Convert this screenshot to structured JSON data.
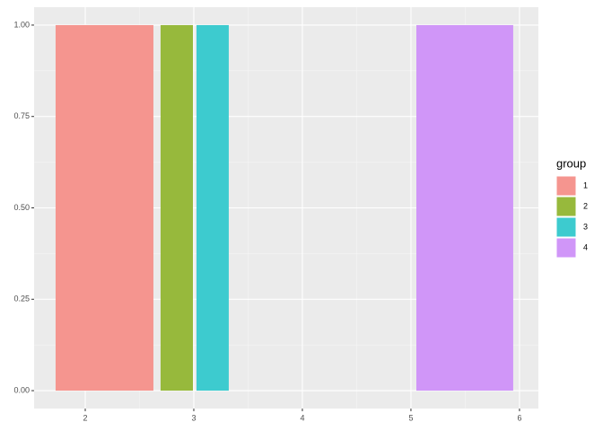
{
  "chart_data": {
    "type": "rect",
    "legend_title": "group",
    "series": [
      {
        "name": "1",
        "color": "#F5958F",
        "x_range": [
          1.727,
          2.628
        ],
        "values": [
          1
        ]
      },
      {
        "name": "2",
        "color": "#97B93C",
        "x_range": [
          2.694,
          2.992
        ],
        "values": [
          1
        ]
      },
      {
        "name": "3",
        "color": "#3DCBCF",
        "x_range": [
          3.025,
          3.322
        ],
        "values": [
          1
        ]
      },
      {
        "name": "4",
        "color": "#D096F8",
        "x_range": [
          5.05,
          5.942
        ],
        "values": [
          1
        ]
      }
    ],
    "xlim": [
      1.529,
      6.174
    ],
    "xticks": [
      2,
      3,
      4,
      5,
      6
    ],
    "ylim": [
      -0.049,
      1.049
    ],
    "yticks": [
      {
        "value": 0,
        "label": "0.00"
      },
      {
        "value": 0.25,
        "label": "0.25"
      },
      {
        "value": 0.5,
        "label": "0.50"
      },
      {
        "value": 0.75,
        "label": "0.75"
      },
      {
        "value": 1,
        "label": "1.00"
      }
    ],
    "grid": true,
    "legend_position": "right"
  }
}
